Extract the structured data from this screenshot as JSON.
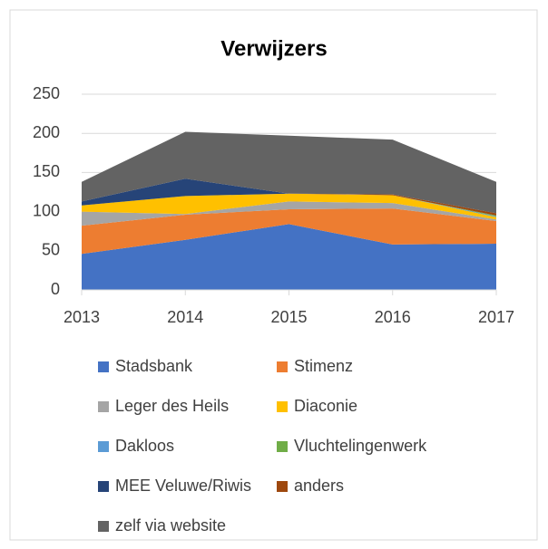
{
  "chart_data": {
    "type": "stacked_area",
    "title": "Verwijzers",
    "categories": [
      "2013",
      "2014",
      "2015",
      "2016",
      "2017"
    ],
    "series": [
      {
        "name": "Stadsbank",
        "color": "#4472c4",
        "values": [
          46,
          64,
          84,
          58,
          59
        ]
      },
      {
        "name": "Stimenz",
        "color": "#ed7d31",
        "values": [
          36,
          32,
          19,
          46,
          29
        ]
      },
      {
        "name": "Leger des Heils",
        "color": "#a5a5a5",
        "values": [
          18,
          1,
          10,
          7,
          2
        ]
      },
      {
        "name": "Diaconie",
        "color": "#ffc000",
        "values": [
          8,
          23,
          10,
          10,
          3
        ]
      },
      {
        "name": "Dakloos",
        "color": "#5b9bd5",
        "values": [
          0,
          0,
          0,
          0,
          1
        ]
      },
      {
        "name": "Vluchtelingenwerk",
        "color": "#70ad47",
        "values": [
          0,
          0,
          0,
          0,
          1
        ]
      },
      {
        "name": "MEE Veluwe/Riwis",
        "color": "#264478",
        "values": [
          5,
          22,
          0,
          0,
          0
        ]
      },
      {
        "name": "anders",
        "color": "#9e480e",
        "values": [
          0,
          0,
          0,
          1,
          3
        ]
      },
      {
        "name": "zelf via website",
        "color": "#636363",
        "values": [
          25,
          60,
          74,
          70,
          40
        ]
      }
    ],
    "ylim": [
      0,
      250
    ],
    "yticks": [
      0,
      50,
      100,
      150,
      200,
      250
    ],
    "grid": true
  }
}
